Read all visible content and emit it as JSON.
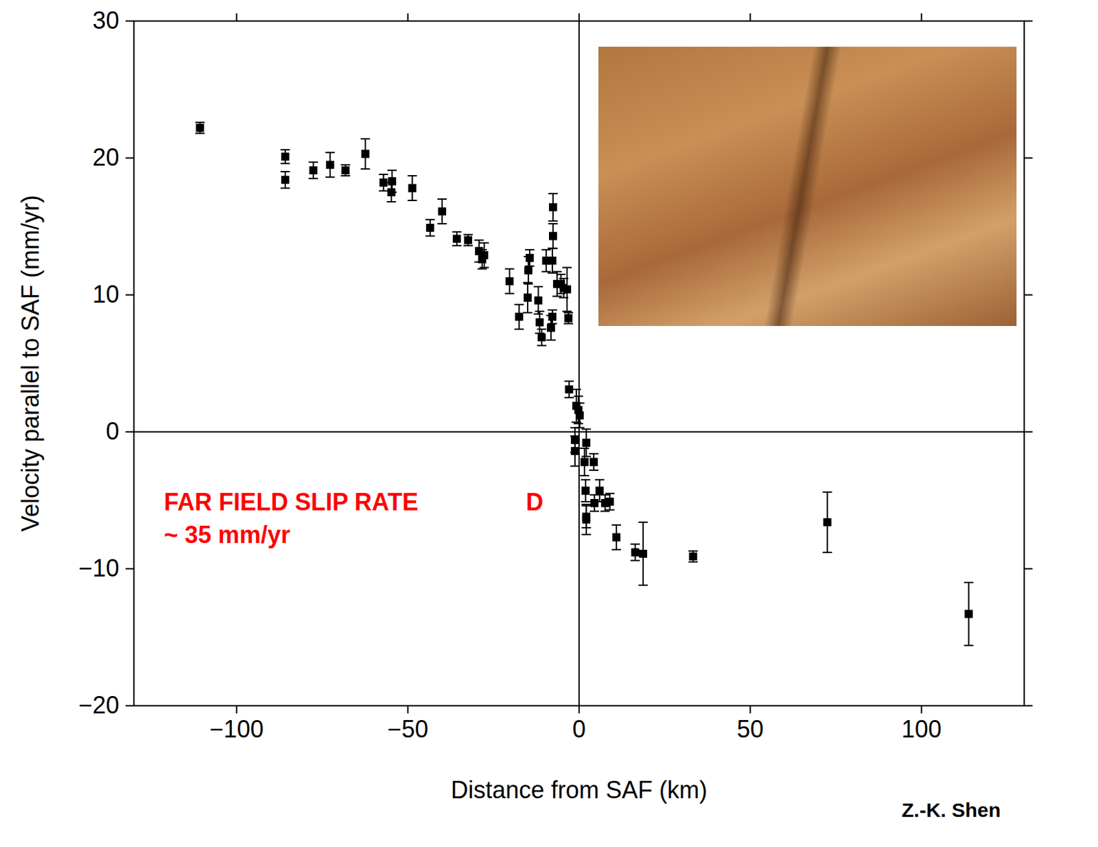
{
  "chart_data": {
    "type": "scatter",
    "xlabel": "Distance from SAF (km)",
    "ylabel": "Velocity parallel to SAF (mm/yr)",
    "annotations": [
      "FAR FIELD SLIP RATE",
      "~ 35 mm/yr",
      "D"
    ],
    "credit": "Z.-K. Shen",
    "color": "#000000",
    "marker": "square",
    "xlim": [
      -130,
      130
    ],
    "ylim": [
      -20,
      30
    ],
    "xticks": [
      -100,
      -50,
      0,
      50,
      100
    ],
    "yticks": [
      -20,
      -10,
      0,
      10,
      20,
      30
    ],
    "x": [
      -110.7,
      -85.8,
      -85.8,
      -77.6,
      -72.7,
      -68.2,
      -62.4,
      -57.1,
      -54.6,
      -54.8,
      -48.7,
      -43.5,
      -40.0,
      -35.7,
      -32.4,
      -29.2,
      -28.3,
      -27.7,
      -20.3,
      -17.5,
      -14.4,
      -14.8,
      -15.0,
      -11.9,
      -11.5,
      -10.9,
      -9.6,
      -7.6,
      -7.6,
      -7.8,
      -7.8,
      -8.2,
      -6.4,
      -5.3,
      -4.5,
      -3.5,
      -3.1,
      -2.9,
      -0.8,
      -0.2,
      0.2,
      -1.2,
      -1.2,
      2.1,
      1.6,
      4.3,
      1.9,
      2.1,
      2.1,
      4.5,
      6.0,
      7.6,
      9.0,
      10.9,
      16.4,
      18.7,
      33.3,
      72.5,
      113.8
    ],
    "values": [
      22.2,
      20.1,
      18.4,
      19.1,
      19.5,
      19.1,
      20.3,
      18.2,
      18.3,
      17.5,
      17.8,
      14.9,
      16.1,
      14.1,
      14.0,
      13.2,
      12.6,
      12.9,
      11.0,
      8.4,
      12.7,
      11.8,
      9.8,
      9.6,
      8.0,
      6.9,
      12.5,
      16.4,
      14.3,
      12.5,
      8.4,
      7.6,
      10.8,
      10.8,
      10.5,
      10.4,
      8.3,
      3.1,
      1.9,
      1.6,
      1.2,
      -0.6,
      -1.4,
      -0.8,
      -2.2,
      -2.2,
      -4.3,
      -6.2,
      -6.4,
      -5.2,
      -4.3,
      -5.2,
      -5.1,
      -7.7,
      -8.8,
      -8.9,
      -9.1,
      -6.6,
      -13.3
    ],
    "errors": [
      0.4,
      0.5,
      0.6,
      0.6,
      0.9,
      0.4,
      1.1,
      0.6,
      0.8,
      0.7,
      0.9,
      0.6,
      0.9,
      0.5,
      0.4,
      0.8,
      0.7,
      0.9,
      0.9,
      0.9,
      0.6,
      1.0,
      1.1,
      1.0,
      0.8,
      0.6,
      0.8,
      1.0,
      0.9,
      0.9,
      0.5,
      0.9,
      0.9,
      0.7,
      0.7,
      1.6,
      0.4,
      0.6,
      1.2,
      1.0,
      0.9,
      0.9,
      1.1,
      1.0,
      1.0,
      0.6,
      0.8,
      0.8,
      1.1,
      0.6,
      0.8,
      0.6,
      0.6,
      0.9,
      0.6,
      2.3,
      0.4,
      2.2,
      2.3
    ]
  }
}
